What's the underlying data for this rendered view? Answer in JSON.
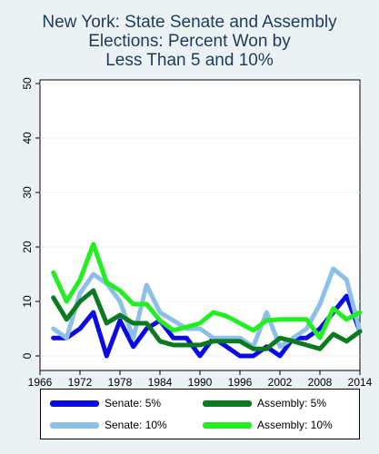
{
  "title_lines": [
    "New York: State Senate and Assembly",
    "Elections: Percent Won by",
    "Less Than 5 and 10%"
  ],
  "chart_data": {
    "type": "line",
    "title": "New York: State Senate and Assembly Elections: Percent Won by Less Than 5 and 10%",
    "xlabel": "",
    "ylabel": "",
    "xlim": [
      1966,
      2014
    ],
    "ylim": [
      0,
      50
    ],
    "xticks": [
      1966,
      1972,
      1978,
      1984,
      1990,
      1996,
      2002,
      2008,
      2014
    ],
    "yticks": [
      0,
      10,
      20,
      30,
      40,
      50
    ],
    "grid": "horizontal",
    "legend_position": "bottom",
    "series": [
      {
        "name": "Senate: 5%",
        "color": "#0a0ae6",
        "x": [
          1968,
          1970,
          1972,
          1974,
          1976,
          1978,
          1980,
          1982,
          1984,
          1986,
          1988,
          1990,
          1992,
          1994,
          1996,
          1998,
          2000,
          2002,
          2004,
          2006,
          2008,
          2010,
          2012,
          2014
        ],
        "values": [
          3.3,
          3.3,
          5,
          8,
          0,
          6.5,
          1.7,
          5,
          6.5,
          3.3,
          3.3,
          0,
          3.3,
          1.7,
          0,
          0,
          1.7,
          0,
          3.3,
          3.3,
          5,
          8,
          11,
          4.5
        ]
      },
      {
        "name": "Senate: 10%",
        "color": "#8cc0e8",
        "x": [
          1968,
          1970,
          1972,
          1974,
          1976,
          1978,
          1980,
          1982,
          1984,
          1986,
          1988,
          1990,
          1992,
          1994,
          1996,
          1998,
          2000,
          2002,
          2004,
          2006,
          2008,
          2010,
          2012,
          2014
        ],
        "values": [
          5,
          3.3,
          11.5,
          15,
          13.3,
          10,
          3.3,
          13,
          8,
          6.5,
          5,
          5,
          3.3,
          3.3,
          3.3,
          1.7,
          8,
          1.7,
          3.3,
          5,
          9.5,
          16,
          14,
          4.5
        ]
      },
      {
        "name": "Assembly: 5%",
        "color": "#0a7a1e",
        "x": [
          1968,
          1970,
          1972,
          1974,
          1976,
          1978,
          1980,
          1982,
          1984,
          1986,
          1988,
          1990,
          1992,
          1994,
          1996,
          1998,
          2000,
          2002,
          2004,
          2006,
          2008,
          2010,
          2012,
          2014
        ],
        "values": [
          10.7,
          6.7,
          10,
          12,
          6,
          7.5,
          6,
          6,
          2.7,
          2,
          2,
          2,
          2.7,
          2.7,
          2.7,
          1.3,
          1.3,
          3.3,
          2.7,
          2,
          1.3,
          4,
          2.7,
          4.5
        ]
      },
      {
        "name": "Assembly: 10%",
        "color": "#22ee22",
        "x": [
          1968,
          1970,
          1972,
          1974,
          1976,
          1978,
          1980,
          1982,
          1984,
          1986,
          1988,
          1990,
          1992,
          1994,
          1996,
          1998,
          2000,
          2002,
          2004,
          2006,
          2008,
          2010,
          2012,
          2014
        ],
        "values": [
          15.3,
          10,
          14,
          20.5,
          13.5,
          12,
          9.5,
          9.5,
          6.5,
          4.7,
          5.3,
          6,
          8,
          7.3,
          6,
          4.7,
          6.5,
          6.7,
          6.7,
          6.7,
          3.3,
          8.7,
          6.7,
          8
        ]
      }
    ]
  },
  "legend": {
    "items": [
      "Senate: 5%",
      "Assembly: 5%",
      "Senate: 10%",
      "Assembly: 10%"
    ]
  }
}
